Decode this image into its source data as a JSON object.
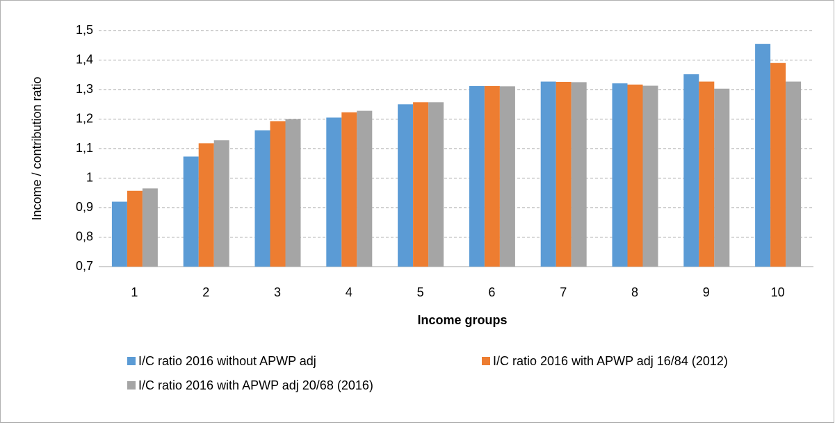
{
  "chart_data": {
    "type": "bar",
    "x_label": "Income groups",
    "y_label": "Income / contribution ratio",
    "categories": [
      "1",
      "2",
      "3",
      "4",
      "5",
      "6",
      "7",
      "8",
      "9",
      "10"
    ],
    "series": [
      {
        "name": "I/C ratio 2016 without APWP adj",
        "color": "#5b9bd5",
        "values": [
          0.92,
          1.073,
          1.162,
          1.205,
          1.25,
          1.312,
          1.327,
          1.321,
          1.352,
          1.455
        ]
      },
      {
        "name": "I/C ratio 2016 with APWP adj 16/84 (2012)",
        "color": "#ed7d31",
        "values": [
          0.957,
          1.118,
          1.193,
          1.223,
          1.257,
          1.312,
          1.326,
          1.317,
          1.327,
          1.39
        ]
      },
      {
        "name": "I/C ratio 2016 with APWP adj 20/68 (2016)",
        "color": "#a5a5a5",
        "values": [
          0.965,
          1.128,
          1.2,
          1.228,
          1.257,
          1.311,
          1.325,
          1.313,
          1.303,
          1.327
        ]
      }
    ],
    "ylim": [
      0.7,
      1.5
    ],
    "yticks": [
      {
        "value": 0.7,
        "label": "0,7"
      },
      {
        "value": 0.8,
        "label": "0,8"
      },
      {
        "value": 0.9,
        "label": "0,9"
      },
      1,
      {
        "value": 1.1,
        "label": "1,1"
      },
      {
        "value": 1.2,
        "label": "1,2"
      },
      {
        "value": 1.3,
        "label": "1,3"
      },
      {
        "value": 1.4,
        "label": "1,4"
      },
      {
        "value": 1.5,
        "label": "1,5"
      }
    ],
    "grid": true,
    "legend": "bottom"
  }
}
